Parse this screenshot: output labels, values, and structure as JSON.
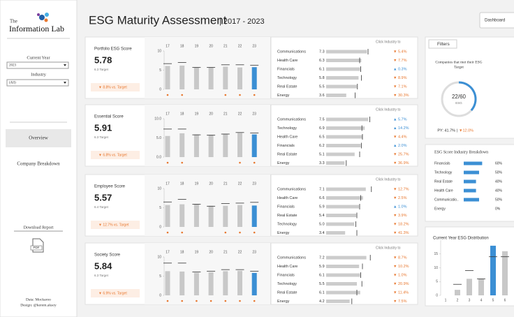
{
  "sidebar": {
    "logo": {
      "top": "The",
      "bottom": "Information Lab"
    },
    "filters": [
      {
        "label": "Current Year",
        "value": "2023"
      },
      {
        "label": "Industry",
        "value": "(All)"
      }
    ],
    "nav": [
      "Overview",
      "Company Breakdown"
    ],
    "download": {
      "label": "Download Report",
      "icon": "PDF"
    },
    "credits": [
      "Data: Mockaroo",
      "Design: @kerem.aksoy"
    ]
  },
  "header": {
    "title": "ESG Maturity Assessment",
    "period": "| 2017 - 2023",
    "button": "Dashboard",
    "tab": "Filters"
  },
  "chart_data": [
    {
      "type": "bar",
      "title": "Portfolio ESG Score",
      "kpi": 5.78,
      "target_label": "6.3 Target",
      "vs_target": "▼ 8.8% vs. Target",
      "categories": [
        "17",
        "18",
        "19",
        "20",
        "21",
        "22",
        "23"
      ],
      "values": [
        6.1,
        6.2,
        5.8,
        5.8,
        5.9,
        5.7,
        5.78
      ],
      "targets": [
        6.7,
        7.0,
        5.7,
        5.7,
        6.4,
        6.4,
        6.3
      ],
      "ylim": [
        0,
        10
      ],
      "yticks": [
        0,
        5,
        10
      ],
      "color": "#c8c8c8",
      "highlight": 6,
      "highlight_color": "#3b8fd4",
      "target_color": "#333333",
      "below_color": "#e8772e"
    },
    {
      "type": "bullet",
      "header": "Click Industry to",
      "categories": [
        "Communications",
        "Health Care",
        "Financials",
        "Technology",
        "Real Estate",
        "Energy"
      ],
      "values": [
        7.3,
        6.3,
        6.1,
        5.8,
        5.5,
        3.6
      ],
      "value_labels": [
        "7.3",
        "6.3",
        "6.1",
        "5.8",
        "5.5",
        "3.6"
      ],
      "targets": [
        7.5,
        6.0,
        6.2,
        6.3,
        5.6,
        5.2
      ],
      "xlim": [
        0,
        10
      ],
      "changes": [
        "▼ 5.4%",
        "▼ 7.7%",
        "▲ 0.3%",
        "▼ 8.9%",
        "▼ 7.1%",
        "▼ 30.3%"
      ],
      "change_colors": [
        "#e8772e",
        "#e8772e",
        "#3b8fd4",
        "#e8772e",
        "#e8772e",
        "#e8772e"
      ],
      "color": "#cccccc",
      "target_color": "#333333"
    },
    {
      "type": "bar",
      "title": "Essential Score",
      "kpi": 5.91,
      "target_label": "6.3 Target",
      "vs_target": "▼ 6.8% vs. Target",
      "categories": [
        "17",
        "18",
        "19",
        "20",
        "21",
        "22",
        "23"
      ],
      "values": [
        5.5,
        6.2,
        5.9,
        5.8,
        6.1,
        6.3,
        5.91
      ],
      "targets": [
        7.3,
        7.3,
        5.8,
        5.7,
        6.0,
        6.4,
        6.3
      ],
      "ylim": [
        0,
        10
      ],
      "yticks": [
        {
          "value": 0,
          "label": "0.0"
        },
        {
          "value": 5,
          "label": "5.0"
        },
        {
          "value": 10,
          "label": "10.0"
        }
      ],
      "color": "#c8c8c8",
      "highlight": 6,
      "highlight_color": "#3b8fd4",
      "target_color": "#333333",
      "below_color": "#e8772e"
    },
    {
      "type": "bullet",
      "header": "Click Industry to",
      "categories": [
        "Communications",
        "Technology",
        "Health Care",
        "Financials",
        "Real Estate",
        "Energy"
      ],
      "values": [
        7.5,
        6.9,
        6.5,
        6.2,
        5.1,
        3.3
      ],
      "value_labels": [
        "7.5",
        "6.9",
        "6.5",
        "6.2",
        "5.1",
        "3.3"
      ],
      "targets": [
        7.8,
        6.4,
        6.5,
        6.3,
        6.0,
        3.6
      ],
      "xlim": [
        0,
        10
      ],
      "changes": [
        "▲ 5.7%",
        "▲ 14.2%",
        "▼ 4.4%",
        "▲ 2.0%",
        "▼ 25.7%",
        "▼ 36.9%"
      ],
      "change_colors": [
        "#3b8fd4",
        "#3b8fd4",
        "#e8772e",
        "#3b8fd4",
        "#e8772e",
        "#e8772e"
      ],
      "color": "#cccccc",
      "target_color": "#333333"
    },
    {
      "type": "bar",
      "title": "Employee Score",
      "kpi": 5.57,
      "target_label": "6.4 Target",
      "vs_target": "▼ 12.7% vs. Target",
      "categories": [
        "17",
        "18",
        "19",
        "20",
        "21",
        "22",
        "23"
      ],
      "values": [
        5.7,
        5.9,
        6.0,
        5.5,
        5.5,
        5.7,
        5.57
      ],
      "targets": [
        6.5,
        7.2,
        5.9,
        5.4,
        6.1,
        6.2,
        6.4
      ],
      "ylim": [
        0,
        10
      ],
      "yticks": [
        0,
        5,
        10
      ],
      "color": "#c8c8c8",
      "highlight": 6,
      "highlight_color": "#3b8fd4",
      "target_color": "#333333",
      "below_color": "#e8772e"
    },
    {
      "type": "bullet",
      "header": "Click Industry to",
      "categories": [
        "Communications",
        "Health Care",
        "Financials",
        "Real Estate",
        "Technology",
        "Energy"
      ],
      "values": [
        7.1,
        6.6,
        5.9,
        5.4,
        5.0,
        3.4
      ],
      "value_labels": [
        "7.1",
        "6.6",
        "5.9",
        "5.4",
        "5.0",
        "3.4"
      ],
      "targets": [
        8.1,
        6.2,
        6.0,
        5.5,
        5.3,
        5.5
      ],
      "xlim": [
        0,
        10
      ],
      "changes": [
        "▼ 12.7%",
        "▼ 2.5%",
        "▲ 1.0%",
        "▼ 3.9%",
        "▼ 18.2%",
        "▼ 41.3%"
      ],
      "change_colors": [
        "#e8772e",
        "#e8772e",
        "#3b8fd4",
        "#e8772e",
        "#e8772e",
        "#e8772e"
      ],
      "color": "#cccccc",
      "target_color": "#333333"
    },
    {
      "type": "bar",
      "title": "Society Score",
      "kpi": 5.84,
      "target_label": "6.3 Target",
      "vs_target": "▼ 6.9% vs. Target",
      "categories": [
        "17",
        "18",
        "19",
        "20",
        "21",
        "22",
        "23"
      ],
      "values": [
        6.3,
        6.2,
        5.9,
        6.0,
        6.3,
        6.4,
        5.84
      ],
      "targets": [
        8.4,
        8.4,
        6.1,
        6.3,
        6.7,
        6.7,
        6.3
      ],
      "ylim": [
        0,
        10
      ],
      "yticks": [
        0,
        5,
        10
      ],
      "color": "#c8c8c8",
      "highlight": 6,
      "highlight_color": "#3b8fd4",
      "target_color": "#333333",
      "below_color": "#e8772e"
    },
    {
      "type": "bullet",
      "header": "Click Industry to",
      "categories": [
        "Communications",
        "Health Care",
        "Financials",
        "Technology",
        "Real Estate",
        "Energy"
      ],
      "values": [
        7.2,
        5.9,
        6.1,
        5.5,
        6.1,
        4.2
      ],
      "value_labels": [
        "7.2",
        "5.9",
        "6.1",
        "5.5",
        "6.1",
        "4.2"
      ],
      "targets": [
        7.9,
        6.5,
        6.2,
        6.4,
        5.5,
        4.6
      ],
      "xlim": [
        0,
        10
      ],
      "changes": [
        "▼ 8.7%",
        "▼ 10.2%",
        "▼ 1.0%",
        "▼ 20.9%",
        "▼ 11.4%",
        "▼ 7.5%"
      ],
      "change_colors": [
        "#e8772e",
        "#e8772e",
        "#e8772e",
        "#e8772e",
        "#e8772e",
        "#e8772e"
      ],
      "color": "#cccccc",
      "target_color": "#333333"
    },
    {
      "type": "gauge",
      "title_lines": [
        "Companies that met their ESG",
        "Target"
      ],
      "value": 22,
      "max": 60,
      "value_label": "22/60",
      "label": "ESG",
      "footnote": "PY: 41.7% |",
      "change": "▼12.0%",
      "change_color": "#e8772e",
      "color": "#3b8fd4",
      "track_color": "#dddddd"
    },
    {
      "type": "hbar",
      "title": "ESG Score Industry Breakdown",
      "categories": [
        "Financials",
        "Technology",
        "Real Estate",
        "Health Care",
        "Communicatio..",
        "Energy"
      ],
      "values": [
        60,
        50,
        40,
        40,
        50,
        0
      ],
      "value_labels": [
        "60%",
        "50%",
        "40%",
        "40%",
        "50%",
        "0%"
      ],
      "xlim": [
        0,
        100
      ],
      "color": "#3b8fd4"
    },
    {
      "type": "bar",
      "title": "Current Year ESG Distribution",
      "categories": [
        "1",
        "2",
        "3",
        "4",
        "5",
        "6"
      ],
      "values": [
        0,
        2,
        6,
        6,
        18,
        16
      ],
      "targets": [
        null,
        4,
        9,
        6,
        14,
        14
      ],
      "ylim": [
        0,
        20
      ],
      "yticks": [
        0,
        5,
        10,
        15
      ],
      "color": "#c8c8c8",
      "highlight": 4,
      "highlight_color": "#3b8fd4",
      "target_color": "#333333"
    }
  ]
}
